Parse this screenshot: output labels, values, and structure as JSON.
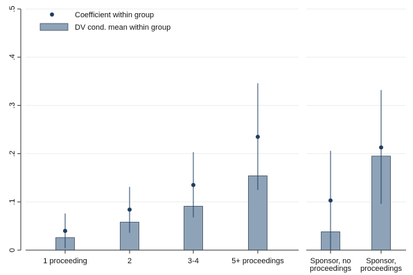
{
  "chart_data": {
    "type": "bar",
    "title": "",
    "xlabel": "",
    "ylabel": "",
    "ylim": [
      0,
      0.5
    ],
    "y_ticks": [
      {
        "value": 0,
        "label": "0"
      },
      {
        "value": 0.1,
        "label": ".1"
      },
      {
        "value": 0.2,
        "label": ".2"
      },
      {
        "value": 0.3,
        "label": ".3"
      },
      {
        "value": 0.4,
        "label": ".4"
      },
      {
        "value": 0.5,
        "label": ".5"
      }
    ],
    "grid": true,
    "legend_position": "top-left",
    "legend": {
      "coefficient": "Coefficient within group",
      "mean": "DV cond. mean within group"
    },
    "colors": {
      "bar_fill": "#8ea3b8",
      "bar_stroke": "#3a4a5c",
      "marker": "#1f3f5f",
      "error_bar": "#1f3f5f",
      "grid": "#eaeef2"
    },
    "panels": [
      {
        "categories": [
          {
            "label_lines": [
              "1 proceeding"
            ],
            "mean": 0.026,
            "coef": 0.04,
            "ci": [
              0.004,
              0.076
            ]
          },
          {
            "label_lines": [
              "2"
            ],
            "mean": 0.058,
            "coef": 0.084,
            "ci": [
              0.036,
              0.131
            ]
          },
          {
            "label_lines": [
              "3-4"
            ],
            "mean": 0.091,
            "coef": 0.135,
            "ci": [
              0.068,
              0.203
            ]
          },
          {
            "label_lines": [
              "5+ proceedings"
            ],
            "mean": 0.154,
            "coef": 0.235,
            "ci": [
              0.125,
              0.346
            ]
          }
        ]
      },
      {
        "categories": [
          {
            "label_lines": [
              "Sponsor, no",
              "proceedings"
            ],
            "mean": 0.038,
            "coef": 0.103,
            "ci": [
              0.0,
              0.206
            ]
          },
          {
            "label_lines": [
              "Sponsor,",
              "proceedings"
            ],
            "mean": 0.195,
            "coef": 0.213,
            "ci": [
              0.096,
              0.332
            ]
          }
        ]
      }
    ]
  }
}
